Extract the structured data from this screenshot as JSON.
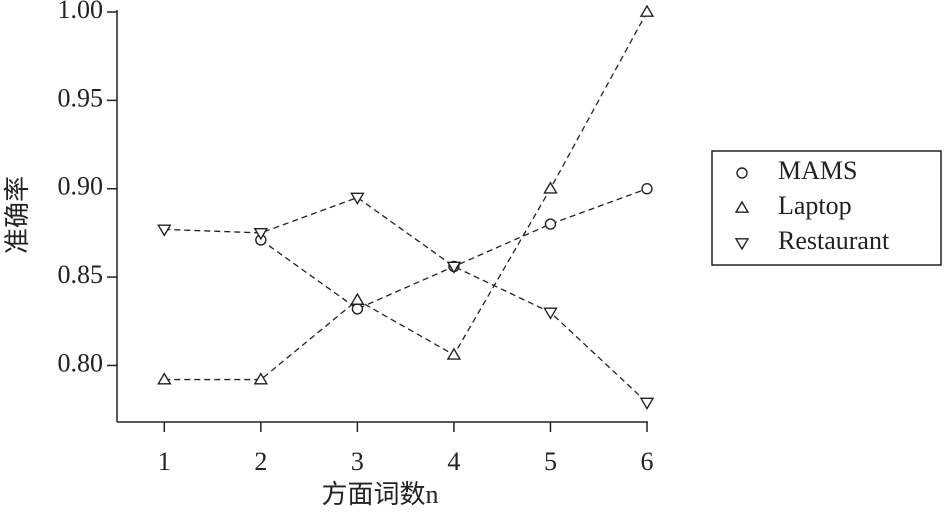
{
  "chart_data": {
    "type": "line",
    "x_label": "方面词数n",
    "y_label": "准确率",
    "x": [
      1,
      2,
      3,
      4,
      5,
      6
    ],
    "xlim": [
      0.51,
      6
    ],
    "xticks": [
      1,
      2,
      3,
      4,
      5,
      6
    ],
    "ylim": [
      0.768,
      1.0
    ],
    "yticks": [
      {
        "value": 0.8,
        "label": "0.80"
      },
      {
        "value": 0.85,
        "label": "0.85"
      },
      {
        "value": 0.9,
        "label": "0.90"
      },
      {
        "value": 0.95,
        "label": "0.95"
      },
      {
        "value": 1.0,
        "label": "1.00"
      }
    ],
    "legend": "right",
    "series": [
      {
        "name": "MAMS",
        "color": "#222222",
        "marker": "circle",
        "values": [
          null,
          0.871,
          0.832,
          0.856,
          0.88,
          0.9
        ]
      },
      {
        "name": "Laptop",
        "color": "#222222",
        "marker": "triangle-up",
        "values": [
          0.792,
          0.792,
          0.837,
          0.806,
          0.9,
          1.0
        ]
      },
      {
        "name": "Restaurant",
        "color": "#222222",
        "marker": "triangle-down",
        "values": [
          0.877,
          0.875,
          0.895,
          0.856,
          0.83,
          0.779
        ]
      }
    ]
  }
}
